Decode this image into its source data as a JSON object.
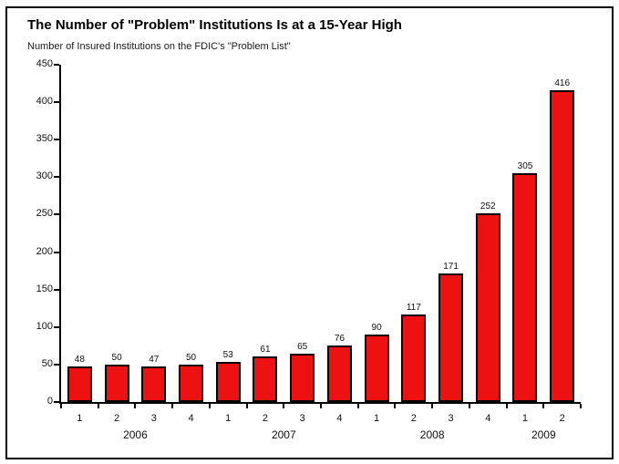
{
  "chart": {
    "title": "The Number of \"Problem\" Institutions Is at a 15-Year High",
    "subtitle": "Number of Insured Institutions on the FDIC's \"Problem List\""
  },
  "chart_data": {
    "type": "bar",
    "title": "The Number of \"Problem\" Institutions Is at a 15-Year High",
    "subtitle": "Number of Insured Institutions on the FDIC's \"Problem List\"",
    "categories": [
      "1",
      "2",
      "3",
      "4",
      "1",
      "2",
      "3",
      "4",
      "1",
      "2",
      "3",
      "4",
      "1",
      "2"
    ],
    "year_groups": [
      {
        "label": "2006",
        "span": 4
      },
      {
        "label": "2007",
        "span": 4
      },
      {
        "label": "2008",
        "span": 4
      },
      {
        "label": "2009",
        "span": 2
      }
    ],
    "values": [
      48,
      50,
      47,
      50,
      53,
      61,
      65,
      76,
      90,
      117,
      171,
      252,
      305,
      416
    ],
    "data_labels": true,
    "xlabel": "",
    "ylabel": "",
    "ylim": [
      0,
      450
    ],
    "ytick_step": 50,
    "yticks": [
      450,
      400,
      350,
      300,
      250,
      200,
      150,
      100,
      50,
      0
    ],
    "grid": false,
    "legend_position": "none",
    "bar_color": "#ee1111",
    "bar_border_color": "#000000",
    "axis_color": "#000000",
    "frame_border_color": "#000000",
    "background_color": "#ffffff"
  }
}
